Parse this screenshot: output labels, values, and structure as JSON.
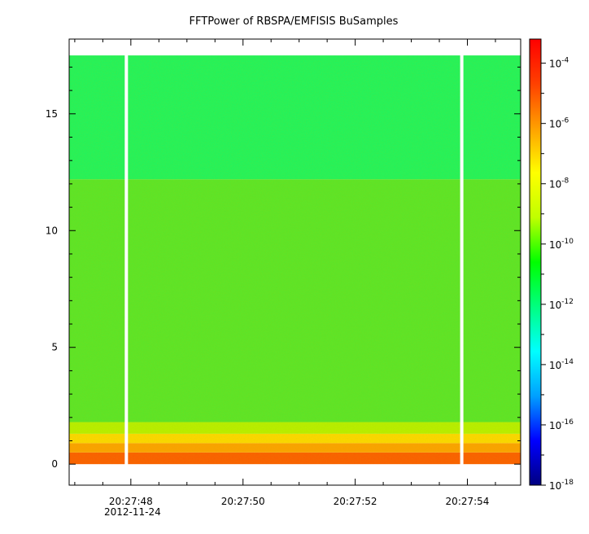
{
  "chart_data": {
    "type": "heatmap",
    "title": "FFTPower of RBSPA/EMFISIS  BuSamples",
    "xlabel": "",
    "ylabel": "",
    "x_ticks": [
      {
        "label": "20:27:48",
        "seconds": 48
      },
      {
        "label": "20:27:50",
        "seconds": 50
      },
      {
        "label": "20:27:52",
        "seconds": 52
      },
      {
        "label": "20:27:54",
        "seconds": 54
      }
    ],
    "x_date_label": "2012-11-24",
    "xlim_seconds": [
      46.9,
      54.95
    ],
    "y_ticks": [
      0,
      5,
      10,
      15
    ],
    "ylim": [
      -0.9,
      18.2
    ],
    "data_ymax": 17.5,
    "data_gaps_seconds": [
      47.92,
      53.9
    ],
    "colorbar": {
      "scale": "log",
      "range_exponents": [
        -18,
        -3.2
      ],
      "tick_exponents": [
        -4,
        -6,
        -8,
        -10,
        -12,
        -14,
        -16,
        -18
      ],
      "tick_base": "10",
      "colors": [
        "#000080",
        "#0000ff",
        "#00a0ff",
        "#00ffff",
        "#00ff80",
        "#00ff00",
        "#c0ff00",
        "#ffff00",
        "#ffa000",
        "#ff4000",
        "#ff0000"
      ]
    },
    "spectrogram_bands": [
      {
        "y_from": 0.0,
        "y_to": 0.5,
        "color": "#ff5a00"
      },
      {
        "y_from": 0.5,
        "y_to": 0.9,
        "color": "#ffa000"
      },
      {
        "y_from": 0.9,
        "y_to": 1.3,
        "color": "#ffd800"
      },
      {
        "y_from": 1.3,
        "y_to": 1.8,
        "color": "#b8f000"
      },
      {
        "y_from": 1.8,
        "y_to": 12.2,
        "color": "#58e62a"
      },
      {
        "y_from": 12.2,
        "y_to": 17.5,
        "color": "#1cf560"
      }
    ]
  }
}
